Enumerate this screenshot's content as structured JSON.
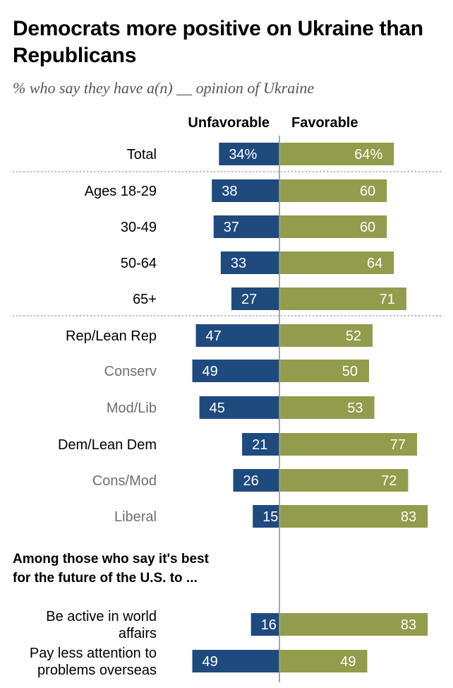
{
  "title": "Democrats more positive on Ukraine than Republicans",
  "subtitle": "% who say they have a(n) __ opinion of Ukraine",
  "colors": {
    "unfavorable": "#1f4a7e",
    "favorable": "#929c4c",
    "label_dark": "#000000",
    "label_muted": "#6e6e6e",
    "divider": "#8c8c8c"
  },
  "chart_data": {
    "type": "bar",
    "orientation": "horizontal-diverging",
    "series": [
      {
        "name": "Unfavorable",
        "values": [
          34,
          38,
          37,
          33,
          27,
          47,
          49,
          45,
          21,
          26,
          15,
          16,
          49
        ]
      },
      {
        "name": "Favorable",
        "values": [
          64,
          60,
          60,
          64,
          71,
          52,
          50,
          53,
          77,
          72,
          83,
          83,
          49
        ]
      }
    ],
    "categories": [
      "Total",
      "Ages 18-29",
      "30-49",
      "50-64",
      "65+",
      "Rep/Lean Rep",
      "Conserv",
      "Mod/Lib",
      "Dem/Lean Dem",
      "Cons/Mod",
      "Liberal",
      "Be active in world affairs",
      "Pay less attention to problems overseas"
    ],
    "category_lines": [
      [
        "Total"
      ],
      [
        "Ages 18-29"
      ],
      [
        "30-49"
      ],
      [
        "50-64"
      ],
      [
        "65+"
      ],
      [
        "Rep/Lean Rep"
      ],
      [
        "Conserv"
      ],
      [
        "Mod/Lib"
      ],
      [
        "Dem/Lean Dem"
      ],
      [
        "Cons/Mod"
      ],
      [
        "Liberal"
      ],
      [
        "Be active in world",
        "affairs"
      ],
      [
        "Pay less attention to",
        "problems overseas"
      ]
    ],
    "muted_categories": [
      "Conserv",
      "Mod/Lib",
      "Cons/Mod",
      "Liberal"
    ],
    "value_labels": {
      "unfavorable": [
        "34%",
        "38",
        "37",
        "33",
        "27",
        "47",
        "49",
        "45",
        "21",
        "26",
        "15",
        "16",
        "49"
      ],
      "favorable": [
        "64%",
        "60",
        "60",
        "64",
        "71",
        "52",
        "50",
        "53",
        "77",
        "72",
        "83",
        "83",
        "49"
      ]
    },
    "section_label": [
      "Among those who say it's best",
      "for the future of the U.S. to ..."
    ]
  }
}
